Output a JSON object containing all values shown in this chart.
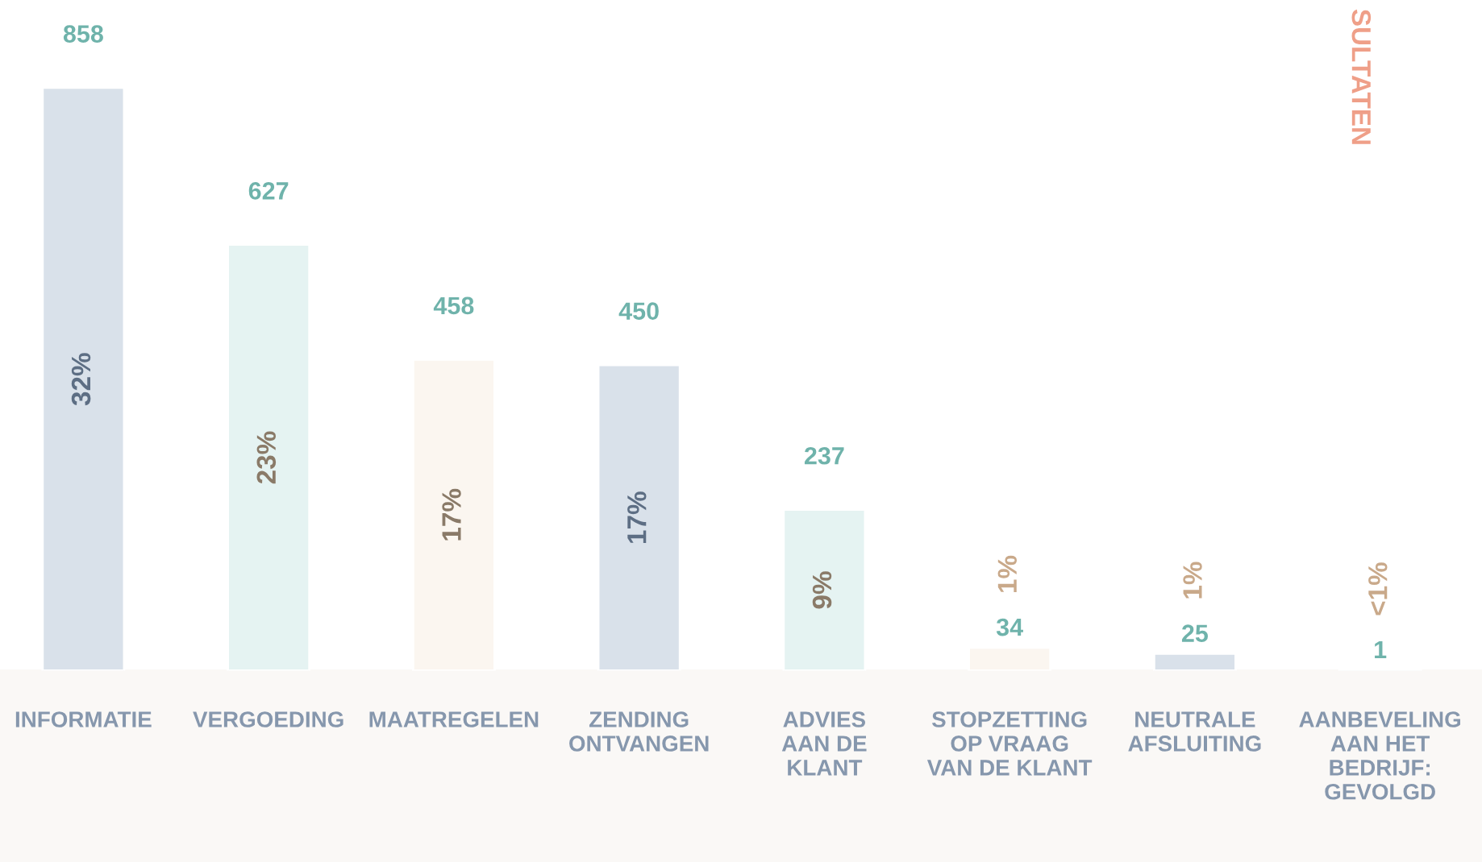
{
  "chart_data": {
    "type": "bar",
    "categories": [
      "INFORMATIE",
      "VERGOEDING",
      "MAATREGELEN",
      "ZENDING\nONTVANGEN",
      "ADVIES\nAAN DE\nKLANT",
      "STOPZETTING\nOP VRAAG\nVAN DE KLANT",
      "NEUTRALE\nAFSLUITING",
      "AANBEVELING\nAAN HET\nBEDRIJF:\nGEVOLGD"
    ],
    "values": [
      858,
      627,
      458,
      450,
      237,
      34,
      25,
      1
    ],
    "colors": [
      "#d9e1ea",
      "#e5f3f2",
      "#fbf6f0",
      "#d9e1ea",
      "#e5f3f2",
      "#fbf6f0",
      "#d9e1ea",
      "#e5f3f2"
    ],
    "data_labels": true,
    "annotations": [
      "32%",
      "23%",
      "17%",
      "17%",
      "9%",
      "1%",
      "1%",
      "<1%",
      "SULTATEN"
    ],
    "grid": false,
    "legend": false
  }
}
